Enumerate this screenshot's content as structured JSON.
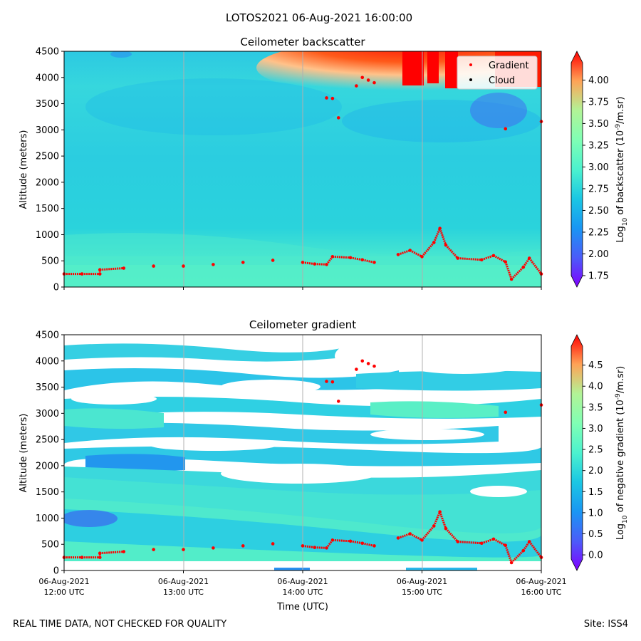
{
  "figure": {
    "suptitle": "LOTOS2021 06-Aug-2021 16:00:00",
    "footer_left": "REAL TIME DATA, NOT CHECKED FOR QUALITY",
    "footer_right": "Site: ISS4"
  },
  "legend": [
    {
      "label": "Gradient",
      "color": "#ff0000"
    },
    {
      "label": "Cloud",
      "color": "#000000"
    }
  ],
  "chart_data": [
    {
      "type": "heatmap",
      "title": "Ceilometer backscatter",
      "xlabel": "",
      "ylabel": "Altitude (meters)",
      "ylim": [
        0,
        4500
      ],
      "xlim_hours": [
        12,
        16
      ],
      "yticks": [
        "0",
        "500",
        "1000",
        "1500",
        "2000",
        "2500",
        "3000",
        "3500",
        "4000",
        "4500"
      ],
      "xticks": [
        {
          "line1": "",
          "line2": ""
        },
        {
          "line1": "",
          "line2": ""
        },
        {
          "line1": "",
          "line2": ""
        },
        {
          "line1": "",
          "line2": ""
        },
        {
          "line1": "",
          "line2": ""
        }
      ],
      "colorbar": {
        "label": "Log10 of backscatter (10^-9/m.sr)",
        "range": [
          1.75,
          4.2
        ],
        "ticks": [
          "1.75",
          "2.00",
          "2.25",
          "2.50",
          "2.75",
          "3.00",
          "3.25",
          "3.50",
          "3.75",
          "4.00"
        ]
      },
      "gradient_series": [
        [
          12.0,
          250
        ],
        [
          12.15,
          250
        ],
        [
          12.3,
          250
        ],
        [
          12.3,
          330
        ],
        [
          12.5,
          360
        ],
        [
          12.75,
          400
        ],
        [
          13.0,
          400
        ],
        [
          13.25,
          430
        ],
        [
          13.5,
          470
        ],
        [
          13.75,
          510
        ],
        [
          14.0,
          470
        ],
        [
          14.1,
          440
        ],
        [
          14.2,
          430
        ],
        [
          14.25,
          580
        ],
        [
          14.4,
          560
        ],
        [
          14.5,
          520
        ],
        [
          14.6,
          470
        ],
        [
          14.8,
          620
        ],
        [
          14.9,
          700
        ],
        [
          15.0,
          580
        ],
        [
          15.1,
          850
        ],
        [
          15.15,
          1120
        ],
        [
          15.2,
          800
        ],
        [
          15.3,
          550
        ],
        [
          15.5,
          520
        ],
        [
          15.6,
          600
        ],
        [
          15.7,
          480
        ],
        [
          15.75,
          150
        ],
        [
          15.85,
          380
        ],
        [
          15.9,
          550
        ],
        [
          16.0,
          250
        ],
        [
          14.45,
          3840
        ],
        [
          14.5,
          4000
        ],
        [
          14.55,
          3950
        ],
        [
          14.6,
          3900
        ],
        [
          14.2,
          3610
        ],
        [
          14.25,
          3600
        ],
        [
          14.3,
          3230
        ],
        [
          15.7,
          3020
        ],
        [
          16.0,
          3160
        ]
      ]
    },
    {
      "type": "heatmap",
      "title": "Ceilometer gradient",
      "xlabel": "Time (UTC)",
      "ylabel": "Altitude (meters)",
      "ylim": [
        0,
        4500
      ],
      "xlim_hours": [
        12,
        16
      ],
      "yticks": [
        "0",
        "500",
        "1000",
        "1500",
        "2000",
        "2500",
        "3000",
        "3500",
        "4000",
        "4500"
      ],
      "xticks": [
        {
          "line1": "06-Aug-2021",
          "line2": "12:00 UTC"
        },
        {
          "line1": "06-Aug-2021",
          "line2": "13:00 UTC"
        },
        {
          "line1": "06-Aug-2021",
          "line2": "14:00 UTC"
        },
        {
          "line1": "06-Aug-2021",
          "line2": "15:00 UTC"
        },
        {
          "line1": "06-Aug-2021",
          "line2": "16:00 UTC"
        }
      ],
      "colorbar": {
        "label": "Log10 of negative gradient (10^-9/m.sr)",
        "range": [
          -0.1,
          4.95
        ],
        "ticks": [
          "0.0",
          "0.5",
          "1.0",
          "1.5",
          "2.0",
          "2.5",
          "3.0",
          "3.5",
          "4.0",
          "4.5"
        ]
      },
      "gradient_series": [
        [
          12.0,
          250
        ],
        [
          12.15,
          250
        ],
        [
          12.3,
          250
        ],
        [
          12.3,
          330
        ],
        [
          12.5,
          360
        ],
        [
          12.75,
          400
        ],
        [
          13.0,
          400
        ],
        [
          13.25,
          430
        ],
        [
          13.5,
          470
        ],
        [
          13.75,
          510
        ],
        [
          14.0,
          470
        ],
        [
          14.1,
          440
        ],
        [
          14.2,
          430
        ],
        [
          14.25,
          580
        ],
        [
          14.4,
          560
        ],
        [
          14.5,
          520
        ],
        [
          14.6,
          470
        ],
        [
          14.8,
          620
        ],
        [
          14.9,
          700
        ],
        [
          15.0,
          580
        ],
        [
          15.1,
          850
        ],
        [
          15.15,
          1120
        ],
        [
          15.2,
          800
        ],
        [
          15.3,
          550
        ],
        [
          15.5,
          520
        ],
        [
          15.6,
          600
        ],
        [
          15.7,
          480
        ],
        [
          15.75,
          150
        ],
        [
          15.85,
          380
        ],
        [
          15.9,
          550
        ],
        [
          16.0,
          250
        ],
        [
          14.45,
          3840
        ],
        [
          14.5,
          4000
        ],
        [
          14.55,
          3950
        ],
        [
          14.6,
          3900
        ],
        [
          14.2,
          3610
        ],
        [
          14.25,
          3600
        ],
        [
          14.3,
          3230
        ],
        [
          15.7,
          3020
        ],
        [
          16.0,
          3160
        ]
      ]
    }
  ]
}
